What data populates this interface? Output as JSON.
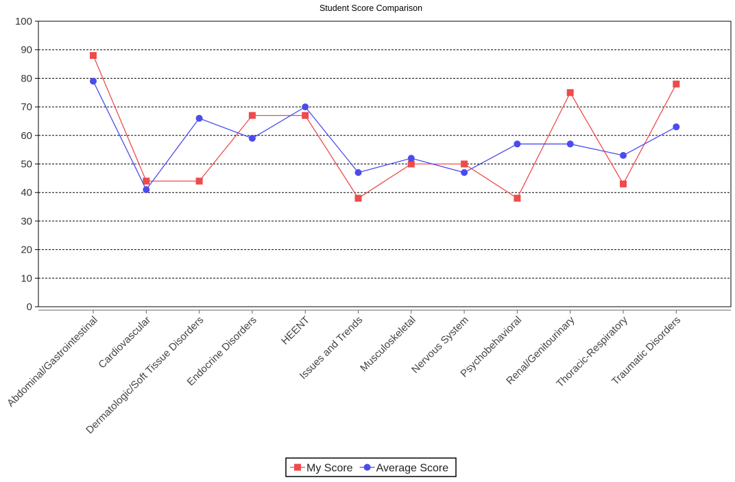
{
  "chart_data": {
    "type": "line",
    "title": "Student Score Comparison",
    "xlabel": "",
    "ylabel": "",
    "ylim": [
      0,
      100
    ],
    "yticks": [
      0,
      10,
      20,
      30,
      40,
      50,
      60,
      70,
      80,
      90,
      100
    ],
    "grid": "horizontal dashed",
    "legend_position": "bottom-center",
    "categories": [
      "Abdominal/Gastrointestinal",
      "Cardiovascular",
      "Dermatologic/Soft Tissue Disorders",
      "Endocrine Disorders",
      "HEENT",
      "Issues and Trends",
      "Musculoskeletal",
      "Nervous System",
      "Psychobehavioral",
      "Renal/Genitourinary",
      "Thoracic-Respiratory",
      "Traumatic Disorders"
    ],
    "series": [
      {
        "name": "My Score",
        "color": "#ee4b4b",
        "marker": "square",
        "values": [
          88,
          44,
          44,
          67,
          67,
          38,
          50,
          50,
          38,
          75,
          43,
          78
        ]
      },
      {
        "name": "Average Score",
        "color": "#4b4bee",
        "marker": "circle",
        "values": [
          79,
          41,
          66,
          59,
          70,
          47,
          52,
          47,
          57,
          57,
          53,
          63
        ]
      }
    ]
  }
}
